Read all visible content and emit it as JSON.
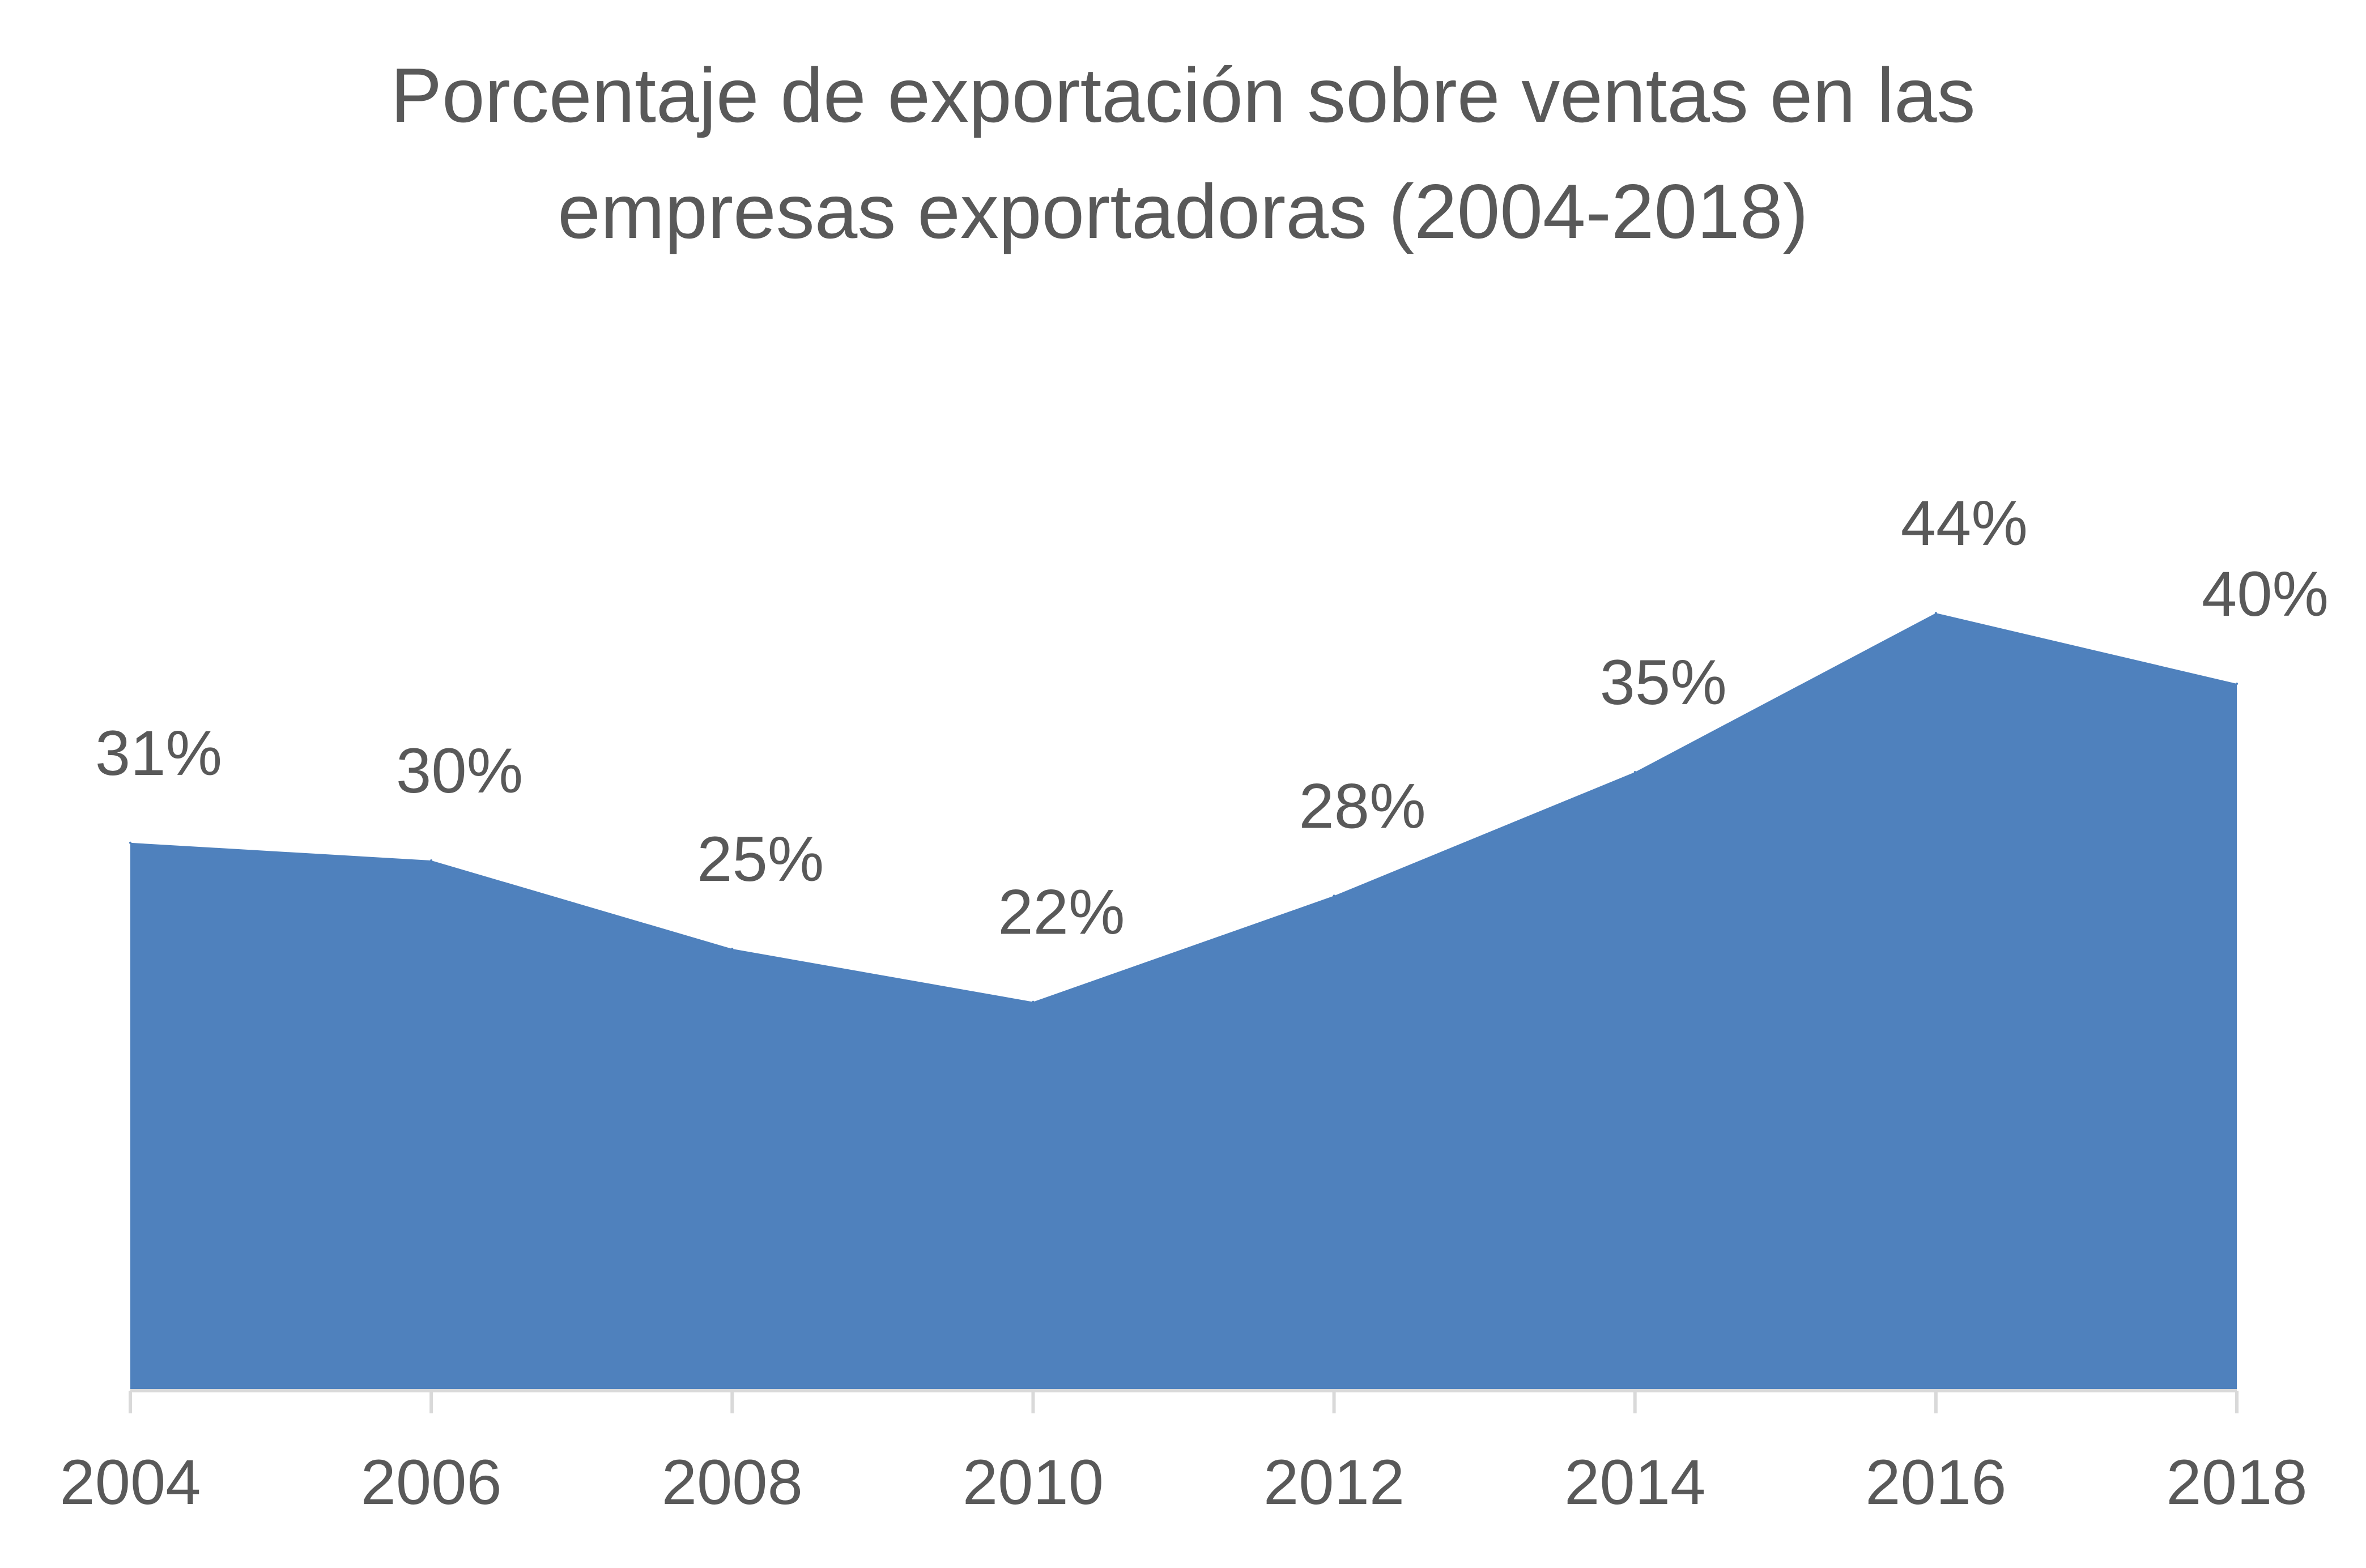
{
  "chart_data": {
    "type": "area",
    "title_lines": [
      "Porcentaje de exportación sobre ventas en las",
      "empresas exportadoras (2004-2018)"
    ],
    "title": "Porcentaje de exportación sobre ventas en las empresas exportadoras (2004-2018)",
    "xlabel": "",
    "ylabel": "",
    "categories": [
      "2004",
      "2006",
      "2008",
      "2010",
      "2012",
      "2014",
      "2016",
      "2018"
    ],
    "values": [
      31,
      30,
      25,
      22,
      28,
      35,
      44,
      40
    ],
    "data_labels": [
      "31%",
      "30%",
      "25%",
      "22%",
      "28%",
      "35%",
      "44%",
      "40%"
    ],
    "ylim": [
      0,
      50
    ],
    "grid": false,
    "legend": "none",
    "colors": {
      "area": "#4f81bd",
      "text": "#595959",
      "axis": "#d9d9d9"
    }
  }
}
